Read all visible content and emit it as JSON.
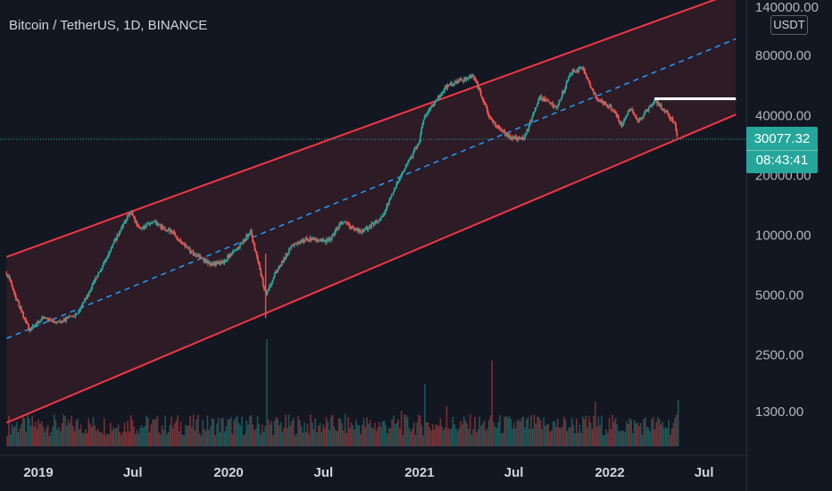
{
  "header": {
    "title": "Bitcoin / TetherUS, 1D, BINANCE",
    "unit": "USDT"
  },
  "price_tag": {
    "price": "30077.32",
    "countdown": "08:43:41"
  },
  "colors": {
    "background": "#131722",
    "channel_line": "#f23645",
    "channel_fill": "#f23645",
    "midline": "#2196f3",
    "candle_up": "#26a69a",
    "candle_down": "#ef5350",
    "resistance_line": "#ffffff",
    "price_tag": "#26a69a"
  },
  "chart_data": {
    "type": "candlestick",
    "scale": "log",
    "y_ticks": [
      {
        "value": 140000,
        "label": "140000.00"
      },
      {
        "value": 80000,
        "label": "80000.00"
      },
      {
        "value": 40000,
        "label": "40000.00"
      },
      {
        "value": 20000,
        "label": "20000.00"
      },
      {
        "value": 10000,
        "label": "10000.00"
      },
      {
        "value": 5000,
        "label": "5000.00"
      },
      {
        "value": 2500,
        "label": "2500.00"
      },
      {
        "value": 1300,
        "label": "1300.00"
      }
    ],
    "x_ticks": [
      "2019",
      "Jul",
      "2020",
      "Jul",
      "2021",
      "Jul",
      "2022",
      "Jul"
    ],
    "x_tick_dates": [
      "2019-01-01",
      "2019-07-01",
      "2020-01-01",
      "2020-07-01",
      "2021-01-01",
      "2021-07-01",
      "2022-01-01",
      "2022-07-01"
    ],
    "x_range": [
      "2018-11-01",
      "2022-08-31"
    ],
    "last_price": 30077.32,
    "price_path": [
      [
        "2018-11-01",
        6400
      ],
      [
        "2018-11-20",
        4700
      ],
      [
        "2018-12-15",
        3300
      ],
      [
        "2019-01-10",
        3800
      ],
      [
        "2019-02-10",
        3600
      ],
      [
        "2019-03-15",
        4000
      ],
      [
        "2019-04-10",
        5200
      ],
      [
        "2019-05-15",
        8000
      ],
      [
        "2019-06-26",
        13000
      ],
      [
        "2019-07-15",
        10500
      ],
      [
        "2019-08-10",
        11500
      ],
      [
        "2019-09-15",
        10200
      ],
      [
        "2019-10-20",
        8200
      ],
      [
        "2019-11-25",
        7100
      ],
      [
        "2019-12-20",
        7200
      ],
      [
        "2020-01-20",
        8700
      ],
      [
        "2020-02-12",
        10300
      ],
      [
        "2020-03-12",
        5000
      ],
      [
        "2020-03-31",
        6400
      ],
      [
        "2020-04-30",
        8700
      ],
      [
        "2020-06-01",
        9500
      ],
      [
        "2020-07-10",
        9200
      ],
      [
        "2020-08-05",
        11500
      ],
      [
        "2020-09-10",
        10300
      ],
      [
        "2020-10-20",
        12000
      ],
      [
        "2020-11-20",
        18500
      ],
      [
        "2020-12-31",
        29000
      ],
      [
        "2021-01-10",
        39000
      ],
      [
        "2021-02-20",
        55000
      ],
      [
        "2021-04-14",
        63000
      ],
      [
        "2021-05-19",
        37000
      ],
      [
        "2021-06-22",
        31000
      ],
      [
        "2021-07-20",
        30000
      ],
      [
        "2021-08-20",
        49000
      ],
      [
        "2021-09-20",
        43000
      ],
      [
        "2021-10-20",
        66000
      ],
      [
        "2021-11-10",
        68000
      ],
      [
        "2021-12-05",
        49000
      ],
      [
        "2022-01-10",
        42000
      ],
      [
        "2022-01-24",
        35000
      ],
      [
        "2022-02-10",
        44000
      ],
      [
        "2022-02-24",
        37000
      ],
      [
        "2022-03-28",
        47000
      ],
      [
        "2022-04-20",
        41000
      ],
      [
        "2022-05-06",
        36000
      ],
      [
        "2022-05-11",
        30077
      ]
    ],
    "channel": {
      "upper": {
        "start": [
          "2018-11-01",
          7700
        ],
        "end": [
          "2022-08-31",
          165000
        ]
      },
      "mid": {
        "start": [
          "2018-11-01",
          3000
        ],
        "end": [
          "2022-08-31",
          96000
        ]
      },
      "lower": {
        "start": [
          "2018-11-01",
          1130
        ],
        "end": [
          "2022-08-31",
          40000
        ]
      }
    },
    "resistance": {
      "start": "2022-03-28",
      "end": "2022-08-31",
      "value": 48000
    }
  }
}
